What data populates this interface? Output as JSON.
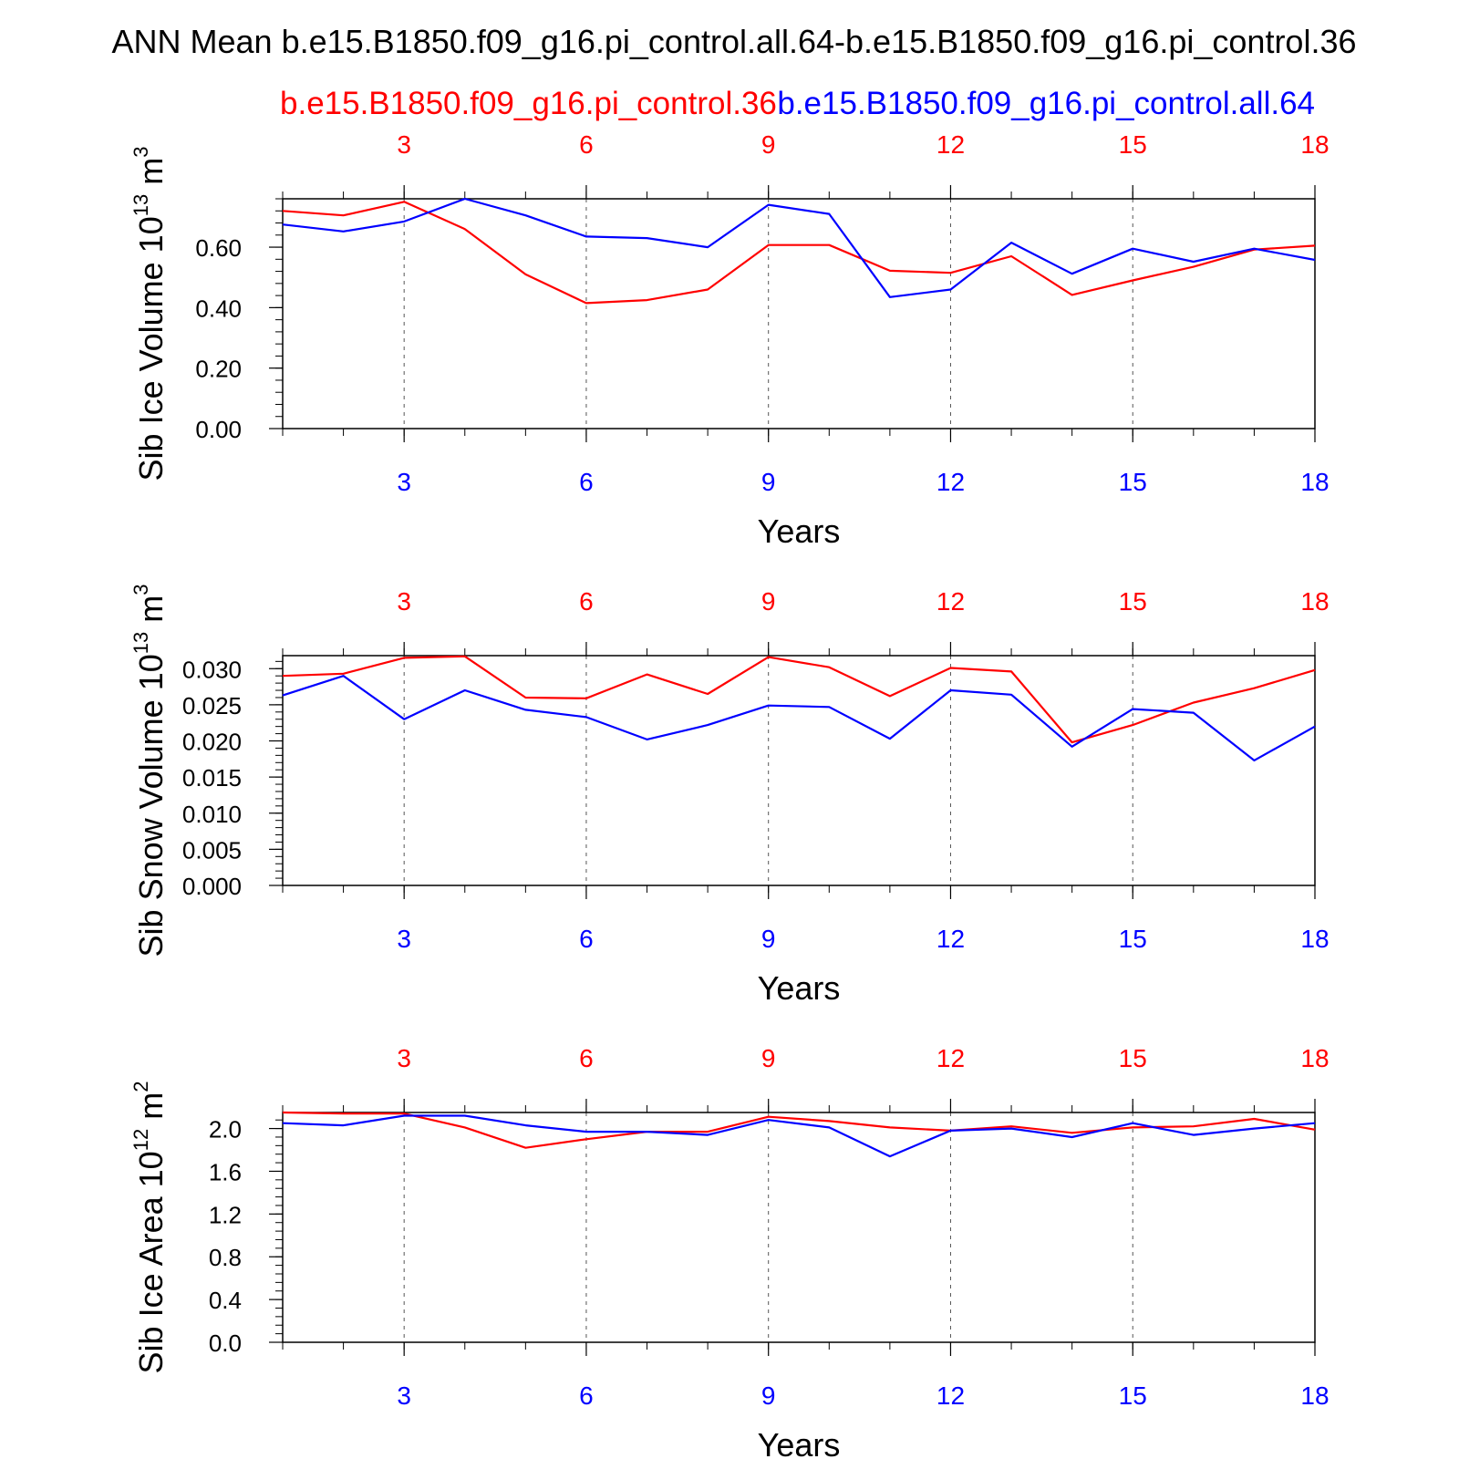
{
  "header": {
    "main_title": "ANN Mean b.e15.B1850.f09_g16.pi_control.all.64-b.e15.B1850.f09_g16.pi_control.36",
    "case_red": "b.e15.B1850.f09_g16.pi_control.36",
    "case_blue": "b.e15.B1850.f09_g16.pi_control.all.64"
  },
  "colors": {
    "red": "#ff0000",
    "blue": "#0000ff",
    "axis": "#000000",
    "grid": "#555555"
  },
  "chart_data": [
    {
      "type": "line",
      "title": "",
      "xlabel": "Years",
      "ylabel": {
        "main": "Sib Ice Volume 10",
        "exp": "13",
        "unit": " m",
        "unit_exp": "3"
      },
      "xlim": [
        1,
        18
      ],
      "ylim": [
        0,
        0.76
      ],
      "yticks": [
        "0.00",
        "0.20",
        "0.40",
        "0.60"
      ],
      "xticks": [
        "3",
        "6",
        "9",
        "12",
        "15",
        "18"
      ],
      "x": [
        1,
        2,
        3,
        4,
        5,
        6,
        7,
        8,
        9,
        10,
        11,
        12,
        13,
        14,
        15,
        16,
        17,
        18
      ],
      "series": [
        {
          "name": "b.e15.B1850.f09_g16.pi_control.36",
          "color": "red",
          "values": [
            0.72,
            0.705,
            0.75,
            0.66,
            0.51,
            0.415,
            0.425,
            0.46,
            0.607,
            0.607,
            0.522,
            0.515,
            0.57,
            0.442,
            0.49,
            0.535,
            0.592,
            0.605
          ]
        },
        {
          "name": "b.e15.B1850.f09_g16.pi_control.all.64",
          "color": "blue",
          "values": [
            0.675,
            0.652,
            0.685,
            0.76,
            0.705,
            0.635,
            0.63,
            0.6,
            0.74,
            0.71,
            0.435,
            0.46,
            0.615,
            0.512,
            0.595,
            0.552,
            0.595,
            0.558
          ]
        }
      ]
    },
    {
      "type": "line",
      "title": "",
      "xlabel": "Years",
      "ylabel": {
        "main": "Sib Snow Volume 10",
        "exp": "13",
        "unit": " m",
        "unit_exp": "3"
      },
      "xlim": [
        1,
        18
      ],
      "ylim": [
        0,
        0.0318
      ],
      "yticks": [
        "0.000",
        "0.005",
        "0.010",
        "0.015",
        "0.020",
        "0.025",
        "0.030"
      ],
      "xticks": [
        "3",
        "6",
        "9",
        "12",
        "15",
        "18"
      ],
      "x": [
        1,
        2,
        3,
        4,
        5,
        6,
        7,
        8,
        9,
        10,
        11,
        12,
        13,
        14,
        15,
        16,
        17,
        18
      ],
      "series": [
        {
          "name": "b.e15.B1850.f09_g16.pi_control.36",
          "color": "red",
          "values": [
            0.029,
            0.0293,
            0.0315,
            0.0317,
            0.026,
            0.0259,
            0.0292,
            0.0265,
            0.0316,
            0.0302,
            0.0262,
            0.0301,
            0.0296,
            0.0198,
            0.0222,
            0.0253,
            0.0273,
            0.0298
          ]
        },
        {
          "name": "b.e15.B1850.f09_g16.pi_control.all.64",
          "color": "blue",
          "values": [
            0.0263,
            0.029,
            0.023,
            0.027,
            0.0243,
            0.0233,
            0.0202,
            0.0222,
            0.0249,
            0.0247,
            0.0203,
            0.027,
            0.0264,
            0.0192,
            0.0244,
            0.0239,
            0.0173,
            0.022
          ]
        }
      ]
    },
    {
      "type": "line",
      "title": "",
      "xlabel": "Years",
      "ylabel": {
        "main": "Sib Ice Area 10",
        "exp": "12",
        "unit": " m",
        "unit_exp": "2"
      },
      "xlim": [
        1,
        18
      ],
      "ylim": [
        0,
        2.15
      ],
      "yticks": [
        "0.0",
        "0.4",
        "0.8",
        "1.2",
        "1.6",
        "2.0"
      ],
      "xticks": [
        "3",
        "6",
        "9",
        "12",
        "15",
        "18"
      ],
      "x": [
        1,
        2,
        3,
        4,
        5,
        6,
        7,
        8,
        9,
        10,
        11,
        12,
        13,
        14,
        15,
        16,
        17,
        18
      ],
      "series": [
        {
          "name": "b.e15.B1850.f09_g16.pi_control.36",
          "color": "red",
          "values": [
            2.15,
            2.14,
            2.14,
            2.01,
            1.82,
            1.9,
            1.97,
            1.97,
            2.11,
            2.07,
            2.01,
            1.98,
            2.02,
            1.96,
            2.01,
            2.02,
            2.09,
            1.99
          ]
        },
        {
          "name": "b.e15.B1850.f09_g16.pi_control.all.64",
          "color": "blue",
          "values": [
            2.05,
            2.03,
            2.12,
            2.12,
            2.03,
            1.97,
            1.97,
            1.94,
            2.08,
            2.01,
            1.74,
            1.98,
            2.0,
            1.92,
            2.05,
            1.94,
            2.0,
            2.05
          ]
        }
      ]
    }
  ]
}
